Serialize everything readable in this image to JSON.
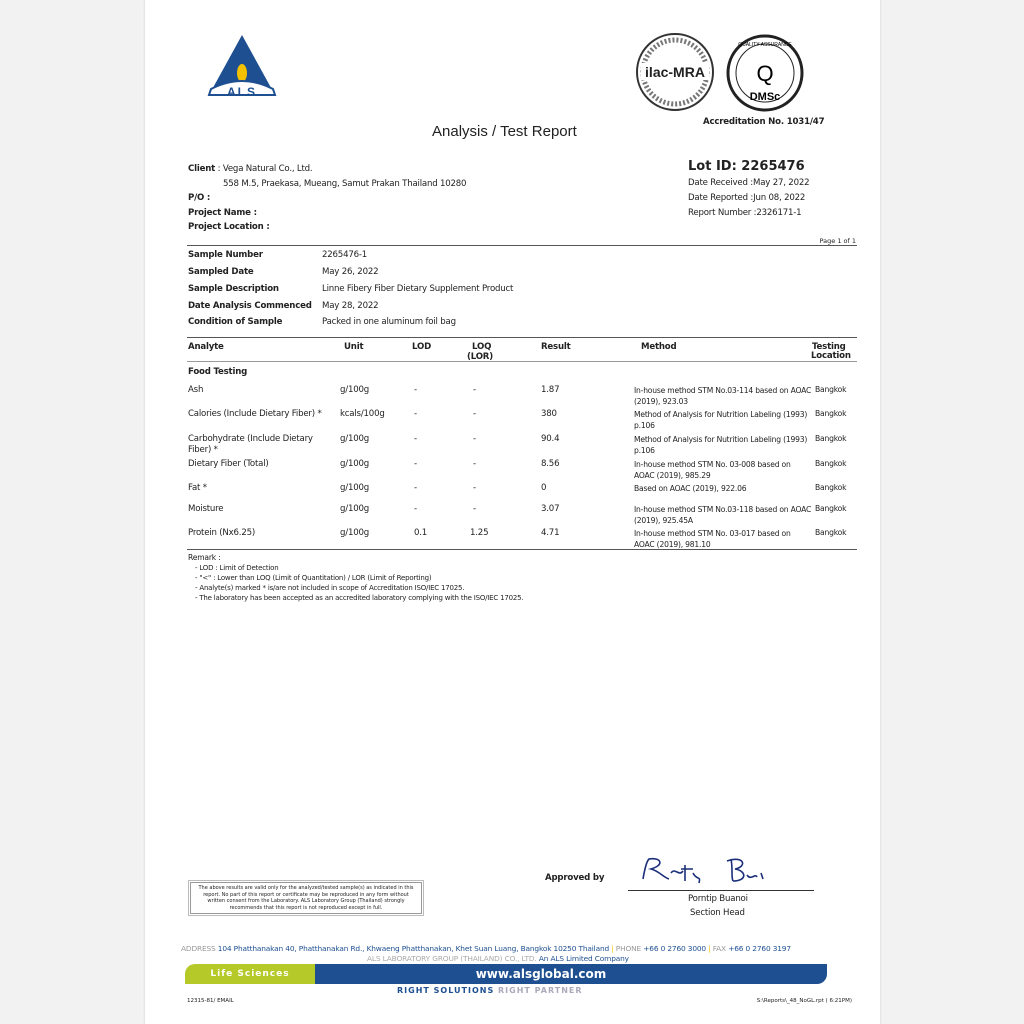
{
  "header": {
    "title": "Analysis / Test Report",
    "logo_text": "ALS",
    "ilac_text": "ilac-MRA",
    "dmsc_text": "DMSc",
    "dmsc_ring_text": "QUALITY ASSURANCE",
    "accreditation": "Accreditation No.  1031/47"
  },
  "client": {
    "client_label": "Client",
    "client_value": ": Vega Natural Co., Ltd.",
    "address": "558 M.5, Praekasa, Mueang, Samut Prakan Thailand 10280",
    "po_label": "P/O  :",
    "project_name_label": "Project Name     :",
    "project_location_label": "Project Location :"
  },
  "lot": {
    "lot_id": "Lot ID: 2265476",
    "date_received": "Date Received  :May 27, 2022",
    "date_reported": "Date Reported  :Jun 08, 2022",
    "report_number": "Report Number :2326171-1",
    "page": "Page 1 of 1"
  },
  "sample": [
    {
      "label": "Sample Number",
      "value": "2265476-1"
    },
    {
      "label": "Sampled Date",
      "value": "May 26, 2022"
    },
    {
      "label": "Sample Description",
      "value": "Linne Fibery Fiber Dietary Supplement Product"
    },
    {
      "label": "Date Analysis Commenced",
      "value": "May 28, 2022"
    },
    {
      "label": "Condition of Sample",
      "value": "Packed in one aluminum foil bag"
    }
  ],
  "table": {
    "headers": {
      "analyte": "Analyte",
      "unit": "Unit",
      "lod": "LOD",
      "loq": "LOQ",
      "loq2": "(LOR)",
      "result": "Result",
      "method": "Method",
      "loc1": "Testing",
      "loc2": "Location"
    },
    "section": "Food Testing",
    "rows": [
      {
        "analyte": "Ash",
        "unit": "g/100g",
        "lod": "-",
        "loq": "-",
        "result": "1.87",
        "method": "In-house method STM No.03-114 based on AOAC (2019), 923.03",
        "location": "Bangkok"
      },
      {
        "analyte": "Calories (Include Dietary Fiber)  *",
        "unit": "kcals/100g",
        "lod": "-",
        "loq": "-",
        "result": "380",
        "method": "Method of Analysis for Nutrition Labeling (1993) p.106",
        "location": "Bangkok"
      },
      {
        "analyte": "Carbohydrate (Include Dietary Fiber)  *",
        "unit": "g/100g",
        "lod": "-",
        "loq": "-",
        "result": "90.4",
        "method": "Method of Analysis for Nutrition Labeling (1993) p.106",
        "location": "Bangkok"
      },
      {
        "analyte": "Dietary Fiber (Total)",
        "unit": "g/100g",
        "lod": "-",
        "loq": "-",
        "result": "8.56",
        "method": "In-house method STM No. 03-008 based on AOAC (2019), 985.29",
        "location": "Bangkok"
      },
      {
        "analyte": "Fat  *",
        "unit": "g/100g",
        "lod": "-",
        "loq": "-",
        "result": "0",
        "method": "Based on AOAC (2019), 922.06",
        "location": "Bangkok"
      },
      {
        "analyte": "Moisture",
        "unit": "g/100g",
        "lod": "-",
        "loq": "-",
        "result": "3.07",
        "method": "In-house method STM No.03-118 based on AOAC (2019), 925.45A",
        "location": "Bangkok"
      },
      {
        "analyte": "Protein (Nx6.25)",
        "unit": "g/100g",
        "lod": "0.1",
        "loq": "1.25",
        "result": "4.71",
        "method": "In-house method STM No. 03-017 based on AOAC (2019), 981.10",
        "location": "Bangkok"
      }
    ]
  },
  "remarks": {
    "title": "Remark :",
    "items": [
      "-  LOD    : Limit of Detection",
      "-  \"<\"    : Lower than  LOQ (Limit of Quantitation) / LOR (Limit of Reporting)",
      "-  Analyte(s) marked * is/are not included in scope of Accreditation ISO/IEC 17025.",
      "-  The laboratory has been accepted as an accredited laboratory complying with the ISO/IEC 17025."
    ]
  },
  "disclaimer": "The above results are valid only for the analyzed/tested sample(s) as indicated in this report. No part of this report or certificate may be reproduced in any form without written consent from the Laboratory. ALS Laboratory Group (Thailand) strongly recommends that this report is not reproduced except in full.",
  "approval": {
    "label": "Approved by",
    "signature": "Porntip Buanoi",
    "name": "Porntip Buanoi",
    "position": "Section Head"
  },
  "footer": {
    "address_label": "ADDRESS",
    "address": "104 Phatthanakan 40, Phatthanakan Rd., Khwaeng Phatthanakan, Khet Suan Luang, Bangkok 10250 Thailand",
    "phone_label": "PHONE",
    "phone": "+66 0 2760 3000",
    "fax_label": "FAX",
    "fax": "+66 0 2760 3197",
    "company": "ALS LABORATORY GROUP (THAILAND) CO., LTD.",
    "company_suffix": "An ALS Limited Company",
    "division": "Life Sciences",
    "website": "www.alsglobal.com",
    "slogan1": "RIGHT SOLUTIONS",
    "slogan2": "RIGHT PARTNER",
    "code_left": "12315-81/ EMAIL",
    "code_right": "S:\\Reports\\_48_NoGL.rpt ( 6:21PM)"
  },
  "colors": {
    "brand_blue": "#1d4f91",
    "lime": "#b5c928",
    "gray": "#999999"
  }
}
